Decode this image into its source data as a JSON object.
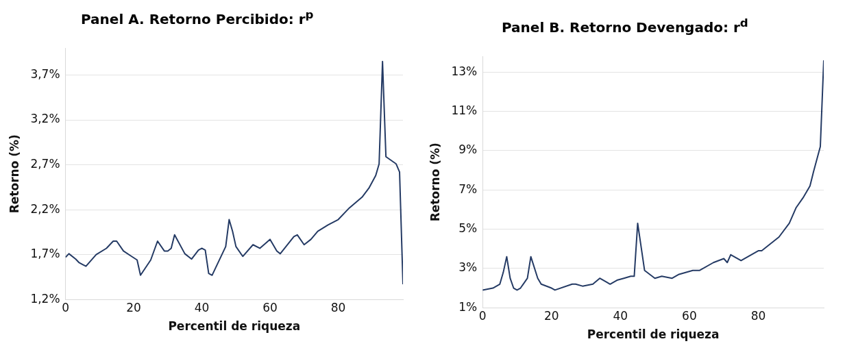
{
  "chart_data": [
    {
      "type": "line",
      "title": "Panel A. Retorno Percibido: r$^{p}$",
      "xlabel": "Percentil de riqueza",
      "ylabel": "Retorno (%)",
      "xlim": [
        0,
        99
      ],
      "xticks": [
        0,
        20,
        40,
        60,
        80
      ],
      "ylim": [
        1.2,
        4.0
      ],
      "yticks": [
        {
          "value": 1.2,
          "label": "1,2%"
        },
        {
          "value": 1.7,
          "label": "1,7%"
        },
        {
          "value": 2.2,
          "label": "2,2%"
        },
        {
          "value": 2.7,
          "label": "2,7%"
        },
        {
          "value": 3.2,
          "label": "3,2%"
        },
        {
          "value": 3.7,
          "label": "3,7%"
        }
      ],
      "grid": "y",
      "marker": "none",
      "line_style": "solid",
      "series": [
        {
          "color": "#243a64",
          "x": [
            0,
            1,
            3,
            4,
            5,
            6,
            9,
            12,
            14,
            15,
            17,
            19,
            21,
            22,
            25,
            27,
            29,
            30,
            31,
            32,
            35,
            37,
            39,
            40,
            41,
            42,
            43,
            47,
            48,
            49,
            50,
            52,
            55,
            57,
            60,
            62,
            63,
            67,
            68,
            70,
            72,
            74,
            77,
            80,
            83,
            87,
            89,
            91,
            92,
            93,
            94,
            97,
            98,
            99
          ],
          "values": [
            1.67,
            1.71,
            1.65,
            1.61,
            1.59,
            1.57,
            1.7,
            1.77,
            1.85,
            1.85,
            1.74,
            1.69,
            1.64,
            1.47,
            1.64,
            1.85,
            1.74,
            1.74,
            1.77,
            1.92,
            1.71,
            1.65,
            1.75,
            1.77,
            1.75,
            1.49,
            1.47,
            1.79,
            2.09,
            1.96,
            1.79,
            1.68,
            1.81,
            1.77,
            1.87,
            1.74,
            1.71,
            1.9,
            1.92,
            1.81,
            1.87,
            1.96,
            2.03,
            2.09,
            2.21,
            2.34,
            2.44,
            2.58,
            2.71,
            3.85,
            2.79,
            2.71,
            2.62,
            1.37
          ]
        }
      ]
    },
    {
      "type": "line",
      "title": "Panel B. Retorno Devengado: r$^{d}$",
      "xlabel": "Percentil de riqueza",
      "ylabel": "Retorno (%)",
      "xlim": [
        0,
        99
      ],
      "xticks": [
        0,
        20,
        40,
        60,
        80
      ],
      "ylim": [
        1,
        13.8
      ],
      "yticks": [
        {
          "value": 1,
          "label": "1%"
        },
        {
          "value": 3,
          "label": "3%"
        },
        {
          "value": 5,
          "label": "5%"
        },
        {
          "value": 7,
          "label": "7%"
        },
        {
          "value": 9,
          "label": "9%"
        },
        {
          "value": 11,
          "label": "11%"
        },
        {
          "value": 13,
          "label": "13%"
        }
      ],
      "grid": "y",
      "marker": "none",
      "line_style": "solid",
      "series": [
        {
          "color": "#243a64",
          "x": [
            0,
            3,
            5,
            6,
            7,
            8,
            9,
            10,
            11,
            13,
            14,
            16,
            17,
            20,
            21,
            26,
            27,
            29,
            32,
            34,
            36,
            37,
            39,
            41,
            43,
            44,
            45,
            47,
            50,
            52,
            55,
            57,
            61,
            63,
            67,
            70,
            71,
            72,
            75,
            80,
            81,
            86,
            89,
            91,
            93,
            95,
            96,
            98,
            99
          ],
          "values": [
            1.9,
            2.0,
            2.2,
            2.8,
            3.6,
            2.5,
            2.0,
            1.9,
            2.0,
            2.5,
            3.6,
            2.5,
            2.2,
            2.0,
            1.9,
            2.2,
            2.2,
            2.1,
            2.2,
            2.5,
            2.3,
            2.2,
            2.4,
            2.5,
            2.6,
            2.6,
            5.3,
            2.9,
            2.5,
            2.6,
            2.5,
            2.7,
            2.9,
            2.9,
            3.3,
            3.5,
            3.3,
            3.7,
            3.4,
            3.9,
            3.9,
            4.6,
            5.3,
            6.1,
            6.6,
            7.2,
            7.9,
            9.2,
            13.6
          ]
        }
      ]
    }
  ]
}
